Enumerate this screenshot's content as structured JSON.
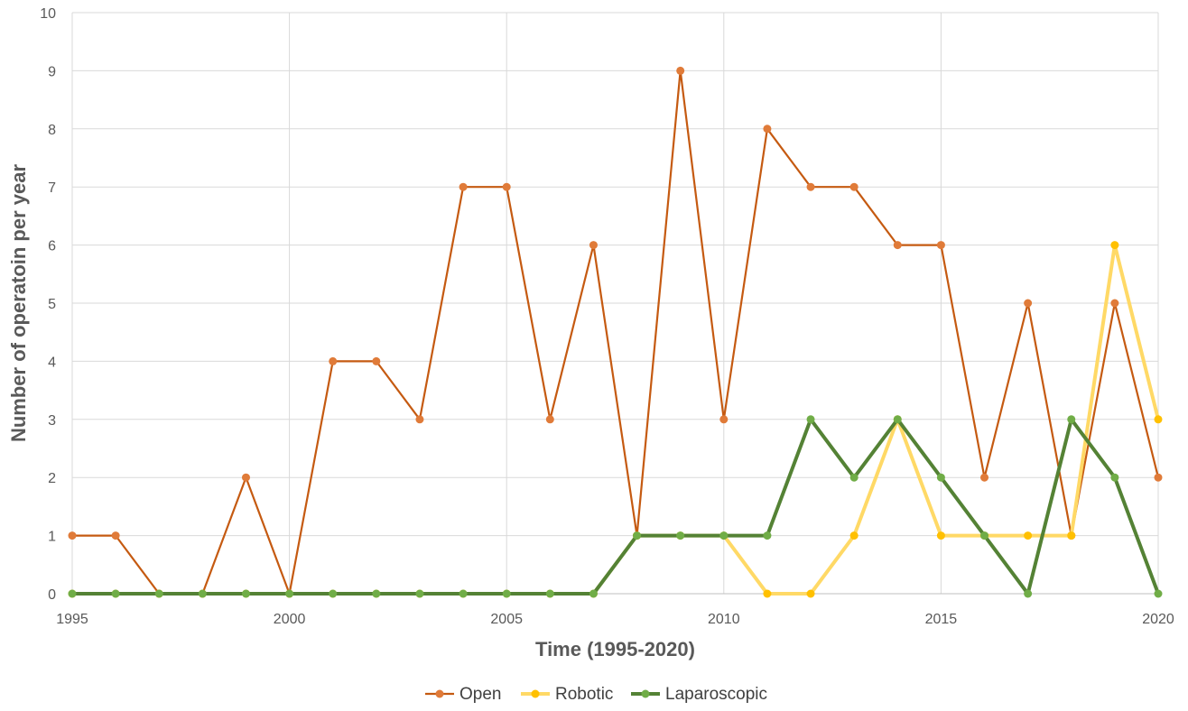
{
  "chart_data": {
    "type": "line",
    "title": "",
    "xlabel": "Time (1995-2020)",
    "ylabel": "Number of operatoin per year",
    "xlim": [
      1995,
      2020
    ],
    "ylim": [
      0,
      10
    ],
    "x_ticks": [
      1995,
      2000,
      2005,
      2010,
      2015,
      2020
    ],
    "y_ticks": [
      0,
      1,
      2,
      3,
      4,
      5,
      6,
      7,
      8,
      9,
      10
    ],
    "grid": true,
    "legend_position": "bottom",
    "x": [
      1995,
      1996,
      1997,
      1998,
      1999,
      2000,
      2001,
      2002,
      2003,
      2004,
      2005,
      2006,
      2007,
      2008,
      2009,
      2010,
      2011,
      2012,
      2013,
      2014,
      2015,
      2016,
      2017,
      2018,
      2019,
      2020
    ],
    "series": [
      {
        "name": "Open",
        "color": "#e07b39",
        "line_color": "#c55a11",
        "line_width": "thin",
        "values": [
          1,
          1,
          0,
          0,
          2,
          0,
          4,
          4,
          3,
          7,
          7,
          3,
          6,
          1,
          9,
          3,
          8,
          7,
          7,
          6,
          6,
          2,
          5,
          1,
          5,
          2
        ]
      },
      {
        "name": "Robotic",
        "color": "#ffc000",
        "line_color": "#ffd966",
        "line_width": "thick",
        "values": [
          0,
          0,
          0,
          0,
          0,
          0,
          0,
          0,
          0,
          0,
          0,
          0,
          0,
          1,
          1,
          1,
          0,
          0,
          1,
          3,
          1,
          1,
          1,
          1,
          6,
          3
        ]
      },
      {
        "name": "Laparoscopic",
        "color": "#70ad47",
        "line_color": "#548235",
        "line_width": "thick",
        "values": [
          0,
          0,
          0,
          0,
          0,
          0,
          0,
          0,
          0,
          0,
          0,
          0,
          0,
          1,
          1,
          1,
          1,
          3,
          2,
          3,
          2,
          1,
          0,
          3,
          2,
          0
        ]
      }
    ]
  }
}
